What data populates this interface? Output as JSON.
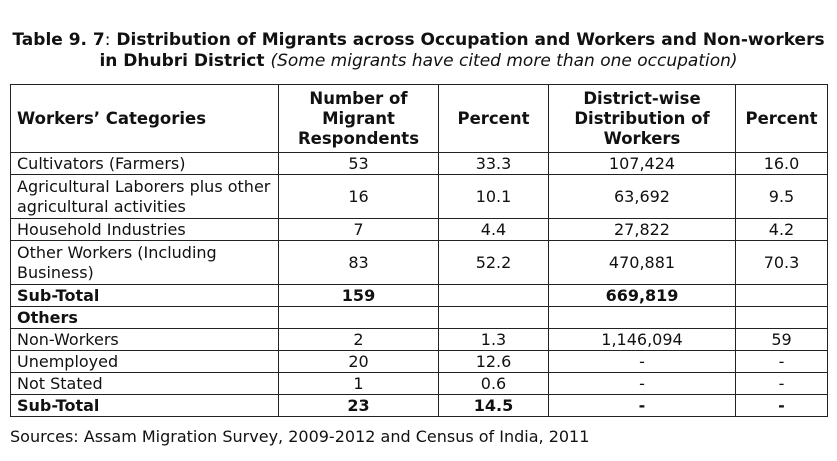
{
  "caption": {
    "label": "Table 9. 7",
    "colon": ":",
    "title": " Distribution of Migrants across Occupation and Workers and Non-workers in Dhubri District",
    "note": "(Some migrants have cited more than one occupation)"
  },
  "table": {
    "headers": [
      "Workers’ Categories",
      "Number of Migrant Respondents",
      "Percent",
      "District-wise Distribution of Workers",
      "Percent"
    ],
    "rows": [
      {
        "category": "Cultivators (Farmers)",
        "respondents": "53",
        "percent": "33.3",
        "district_workers": "107,424",
        "district_percent": "16.0"
      },
      {
        "category": "Agricultural Laborers plus other agricultural activities",
        "respondents": "16",
        "percent": "10.1",
        "district_workers": "63,692",
        "district_percent": "9.5"
      },
      {
        "category": "Household Industries",
        "respondents": "7",
        "percent": "4.4",
        "district_workers": "27,822",
        "district_percent": "4.2"
      },
      {
        "category": "Other Workers (Including Business)",
        "respondents": "83",
        "percent": "52.2",
        "district_workers": "470,881",
        "district_percent": "70.3"
      },
      {
        "category": "Sub-Total",
        "respondents": "159",
        "percent": "",
        "district_workers": "669,819",
        "district_percent": ""
      },
      {
        "category": "Others",
        "respondents": "",
        "percent": "",
        "district_workers": "",
        "district_percent": ""
      },
      {
        "category": "Non-Workers",
        "respondents": "2",
        "percent": "1.3",
        "district_workers": "1,146,094",
        "district_percent": "59"
      },
      {
        "category": "Unemployed",
        "respondents": "20",
        "percent": "12.6",
        "district_workers": "-",
        "district_percent": "-"
      },
      {
        "category": "Not Stated",
        "respondents": "1",
        "percent": "0.6",
        "district_workers": "-",
        "district_percent": "-"
      },
      {
        "category": "Sub-Total",
        "respondents": "23",
        "percent": "14.5",
        "district_workers": "-",
        "district_percent": "-"
      }
    ]
  },
  "sources": "Sources: Assam Migration Survey, 2009-2012 and Census of India, 2011"
}
